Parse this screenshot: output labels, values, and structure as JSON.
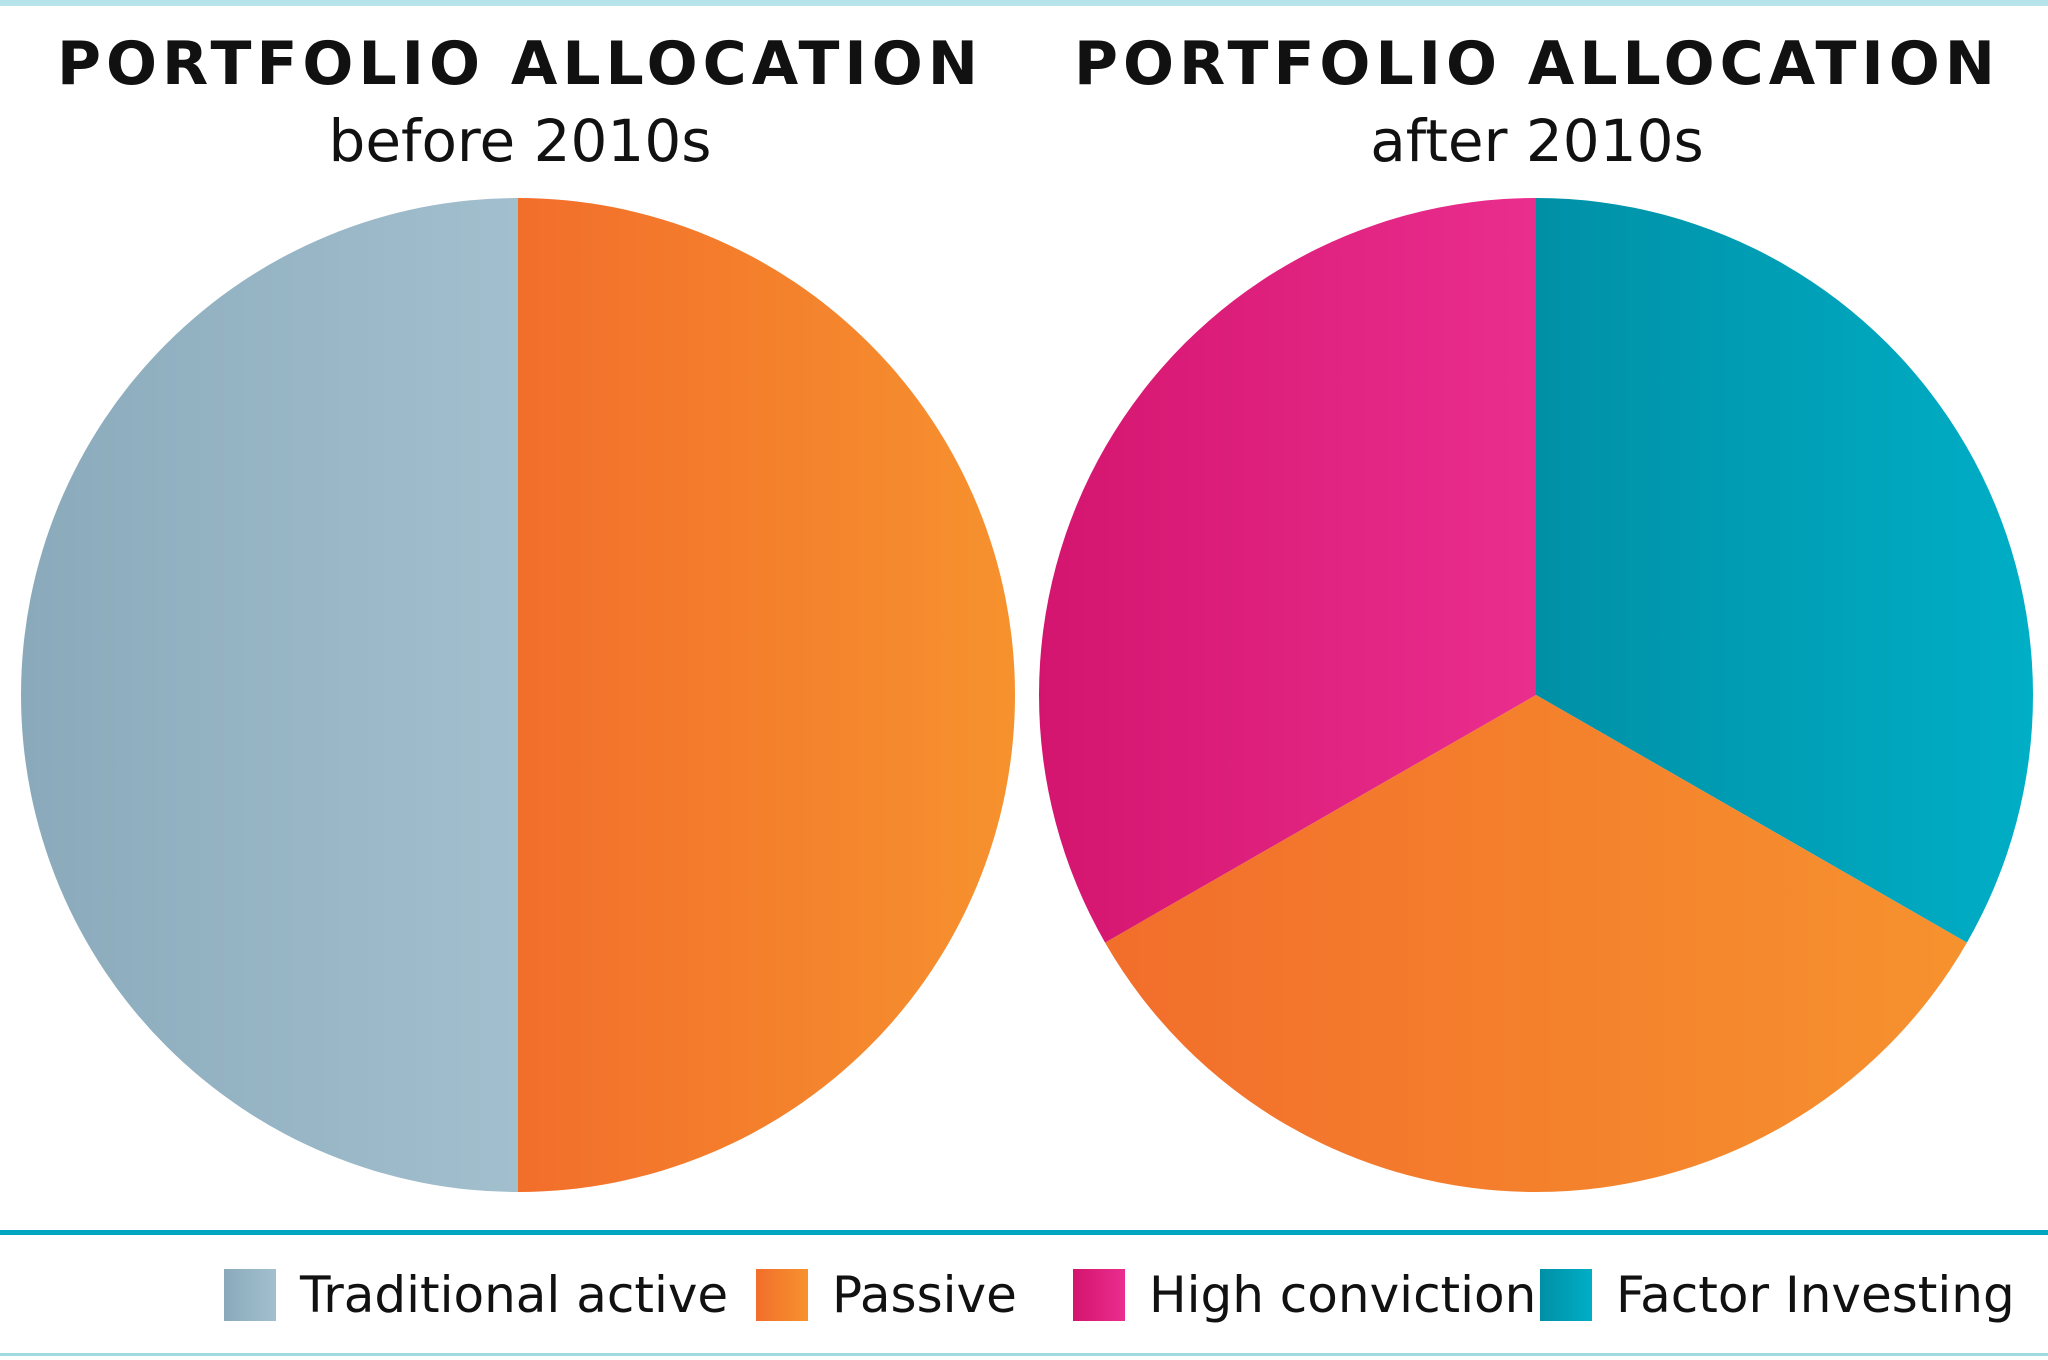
{
  "chart_data": [
    {
      "type": "pie",
      "title": "PORTFOLIO ALLOCATION",
      "subtitle": "before 2010s",
      "slices": [
        {
          "name": "Passive",
          "value": 50,
          "color": "#f48530"
        },
        {
          "name": "Traditional active",
          "value": 50,
          "color": "#95b4c6"
        }
      ]
    },
    {
      "type": "pie",
      "title": "PORTFOLIO ALLOCATION",
      "subtitle": "after 2010s",
      "slices": [
        {
          "name": "Factor Investing",
          "value": 33.3,
          "color": "#009db5"
        },
        {
          "name": "Passive",
          "value": 33.4,
          "color": "#f48530"
        },
        {
          "name": "High conviction",
          "value": 33.3,
          "color": "#e0267f"
        }
      ]
    }
  ],
  "legend": {
    "placement": "bottom",
    "items": [
      {
        "label": "Traditional active",
        "color": "#95b4c6"
      },
      {
        "label": "Passive",
        "color": "#f48530"
      },
      {
        "label": "High conviction",
        "color": "#e0267f"
      },
      {
        "label": "Factor Investing",
        "color": "#009db5"
      }
    ]
  }
}
